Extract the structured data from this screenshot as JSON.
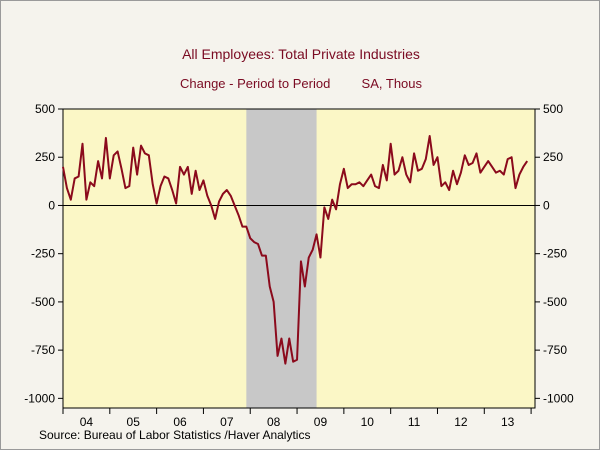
{
  "chart_data": {
    "type": "line",
    "title": "All Employees: Total Private Industries",
    "subtitle_left": "Change - Period to Period",
    "subtitle_right": "SA, Thous",
    "source": "Source:  Bureau of Labor Statistics /Haver Analytics",
    "ylim": [
      -1050,
      500
    ],
    "yticks": [
      500,
      250,
      0,
      -250,
      -500,
      -750,
      -1000
    ],
    "ytick_labels": [
      "500",
      "250",
      "0",
      "-250",
      "-500",
      "-750",
      "-1000"
    ],
    "xlim": [
      "2004-01",
      "2014-02"
    ],
    "xtick_labels": [
      "04",
      "05",
      "06",
      "07",
      "08",
      "09",
      "10",
      "11",
      "12",
      "13"
    ],
    "grid": false,
    "zero_line": true,
    "recession": {
      "start": "2007-12",
      "end": "2009-06",
      "color": "#c8c8c8"
    },
    "plot_background": "#fbf7c6",
    "line_color": "#8b0a1c",
    "series": [
      {
        "x": [
          "2004-01",
          "2004-02",
          "2004-03",
          "2004-04",
          "2004-05",
          "2004-06",
          "2004-07",
          "2004-08",
          "2004-09",
          "2004-10",
          "2004-11",
          "2004-12",
          "2005-01",
          "2005-02",
          "2005-03",
          "2005-04",
          "2005-05",
          "2005-06",
          "2005-07",
          "2005-08",
          "2005-09",
          "2005-10",
          "2005-11",
          "2005-12",
          "2006-01",
          "2006-02",
          "2006-03",
          "2006-04",
          "2006-05",
          "2006-06",
          "2006-07",
          "2006-08",
          "2006-09",
          "2006-10",
          "2006-11",
          "2006-12",
          "2007-01",
          "2007-02",
          "2007-03",
          "2007-04",
          "2007-05",
          "2007-06",
          "2007-07",
          "2007-08",
          "2007-09",
          "2007-10",
          "2007-11",
          "2007-12",
          "2008-01",
          "2008-02",
          "2008-03",
          "2008-04",
          "2008-05",
          "2008-06",
          "2008-07",
          "2008-08",
          "2008-09",
          "2008-10",
          "2008-11",
          "2008-12",
          "2009-01",
          "2009-02",
          "2009-03",
          "2009-04",
          "2009-05",
          "2009-06",
          "2009-07",
          "2009-08",
          "2009-09",
          "2009-10",
          "2009-11",
          "2009-12",
          "2010-01",
          "2010-02",
          "2010-03",
          "2010-04",
          "2010-05",
          "2010-06",
          "2010-07",
          "2010-08",
          "2010-09",
          "2010-10",
          "2010-11",
          "2010-12",
          "2011-01",
          "2011-02",
          "2011-03",
          "2011-04",
          "2011-05",
          "2011-06",
          "2011-07",
          "2011-08",
          "2011-09",
          "2011-10",
          "2011-11",
          "2011-12",
          "2012-01",
          "2012-02",
          "2012-03",
          "2012-04",
          "2012-05",
          "2012-06",
          "2012-07",
          "2012-08",
          "2012-09",
          "2012-10",
          "2012-11",
          "2012-12",
          "2013-01",
          "2013-02",
          "2013-03",
          "2013-04",
          "2013-05",
          "2013-06",
          "2013-07",
          "2013-08",
          "2013-09",
          "2013-10",
          "2013-11",
          "2013-12"
        ],
        "values": [
          200,
          90,
          30,
          140,
          150,
          320,
          30,
          120,
          100,
          230,
          140,
          350,
          140,
          260,
          280,
          190,
          90,
          100,
          300,
          160,
          310,
          270,
          260,
          110,
          10,
          100,
          150,
          140,
          80,
          10,
          200,
          160,
          200,
          60,
          180,
          80,
          130,
          50,
          0,
          -70,
          20,
          60,
          80,
          50,
          0,
          -50,
          -110,
          -110,
          -170,
          -190,
          -200,
          -260,
          -260,
          -420,
          -500,
          -780,
          -690,
          -820,
          -690,
          -810,
          -800,
          -290,
          -420,
          -270,
          -230,
          -150,
          -270,
          -10,
          -70,
          30,
          -20,
          110,
          190,
          90,
          110,
          110,
          120,
          100,
          130,
          160,
          100,
          90,
          210,
          130,
          320,
          160,
          180,
          250,
          160,
          120,
          270,
          180,
          190,
          240,
          360,
          210,
          250,
          100,
          120,
          80,
          180,
          110,
          170,
          260,
          210,
          220,
          270,
          170,
          200,
          230,
          200,
          170,
          180,
          160,
          240,
          250,
          90,
          160,
          200,
          230
        ]
      }
    ]
  }
}
